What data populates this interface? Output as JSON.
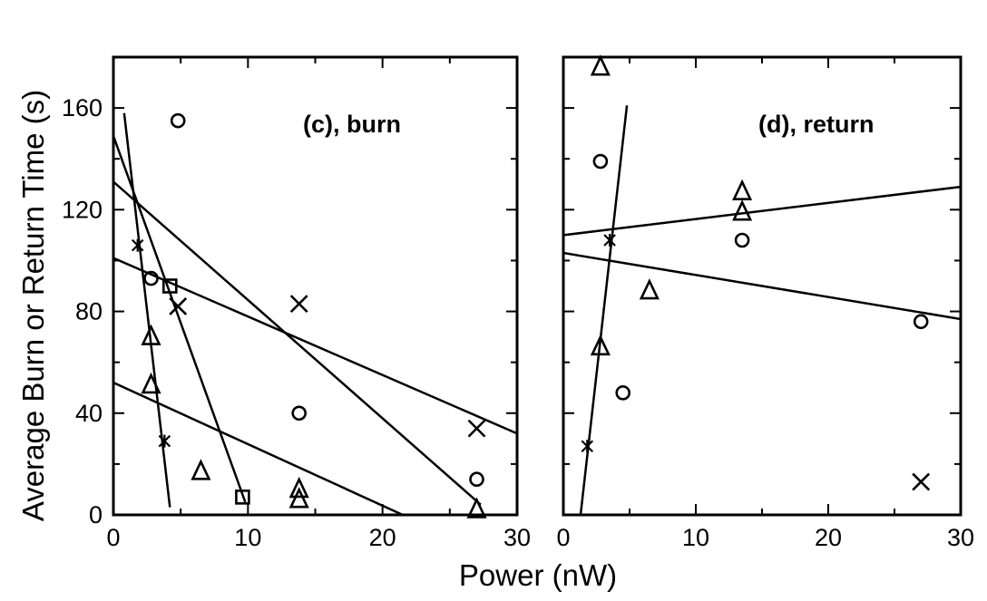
{
  "figure": {
    "ylabel": "Average Burn or Return Time (s)",
    "xlabel": "Power (nW)"
  },
  "chart_data": [
    {
      "type": "scatter",
      "panel_label": "(c), burn",
      "xlim": [
        0,
        30
      ],
      "ylim": [
        0,
        180
      ],
      "x_ticks": [
        0,
        10,
        20,
        30
      ],
      "y_ticks": [
        0,
        40,
        80,
        120,
        160
      ],
      "grid": false,
      "series": [
        {
          "marker": "circle",
          "points": [
            [
              4.8,
              155
            ],
            [
              2.8,
              93
            ],
            [
              13.8,
              40
            ],
            [
              27,
              14
            ]
          ]
        },
        {
          "marker": "star",
          "points": [
            [
              1.8,
              106
            ],
            [
              3.8,
              29
            ]
          ]
        },
        {
          "marker": "square",
          "points": [
            [
              4.2,
              90
            ],
            [
              9.6,
              7
            ]
          ]
        },
        {
          "marker": "cross",
          "points": [
            [
              4.8,
              82
            ],
            [
              13.8,
              83
            ],
            [
              27,
              34
            ]
          ]
        },
        {
          "marker": "triangle",
          "points": [
            [
              2.8,
              70
            ],
            [
              2.8,
              51
            ],
            [
              6.5,
              17
            ],
            [
              13.8,
              10
            ],
            [
              13.8,
              6
            ],
            [
              27,
              2
            ]
          ]
        }
      ],
      "lines": [
        {
          "x": [
            0.8,
            4.2
          ],
          "y": [
            158,
            3
          ]
        },
        {
          "x": [
            0,
            9.8
          ],
          "y": [
            149,
            5
          ]
        },
        {
          "x": [
            0,
            27.3
          ],
          "y": [
            131,
            4
          ]
        },
        {
          "x": [
            0,
            30
          ],
          "y": [
            101,
            32
          ]
        },
        {
          "x": [
            0,
            21.5
          ],
          "y": [
            52,
            0
          ]
        }
      ]
    },
    {
      "type": "scatter",
      "panel_label": "(d), return",
      "xlim": [
        0,
        30
      ],
      "ylim": [
        0,
        180
      ],
      "x_ticks": [
        0,
        10,
        20,
        30
      ],
      "grid": false,
      "series": [
        {
          "marker": "circle",
          "points": [
            [
              2.8,
              139
            ],
            [
              13.5,
              108
            ],
            [
              4.5,
              48
            ],
            [
              27,
              76
            ]
          ]
        },
        {
          "marker": "star",
          "points": [
            [
              3.5,
              108
            ],
            [
              1.8,
              27
            ]
          ]
        },
        {
          "marker": "cross",
          "points": [
            [
              27,
              13
            ]
          ]
        },
        {
          "marker": "triangle",
          "points": [
            [
              2.8,
              176
            ],
            [
              13.5,
              127
            ],
            [
              13.5,
              119
            ],
            [
              6.5,
              88
            ],
            [
              2.8,
              66
            ]
          ]
        }
      ],
      "lines": [
        {
          "x": [
            0,
            30
          ],
          "y": [
            110,
            129
          ]
        },
        {
          "x": [
            0,
            30
          ],
          "y": [
            103,
            77
          ]
        },
        {
          "x": [
            1.3,
            4.8
          ],
          "y": [
            0,
            161
          ]
        }
      ]
    }
  ]
}
